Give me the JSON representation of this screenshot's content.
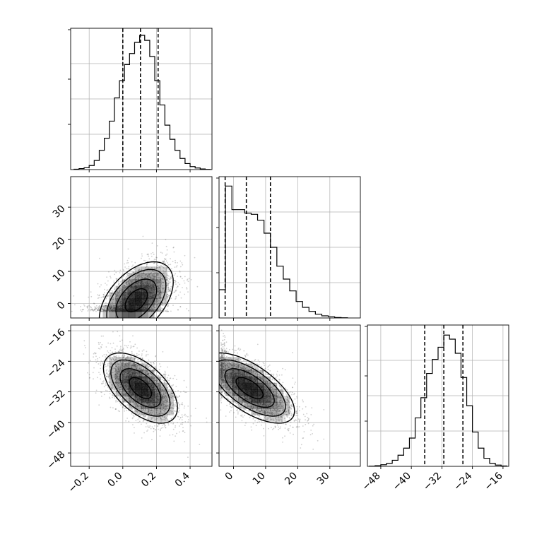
{
  "chart_data": {
    "type": "corner",
    "grid": true,
    "colors": {
      "line": "#000000",
      "grid": "#b0b0b0",
      "density": "#000000",
      "points": "#555555"
    },
    "params": [
      {
        "ticks": [
          -0.2,
          0.0,
          0.2,
          0.4
        ],
        "tick_labels": [
          "−0.2",
          "0.0",
          "0.2",
          "0.4"
        ],
        "range": [
          -0.31,
          0.53
        ]
      },
      {
        "ticks": [
          0,
          10,
          20,
          30
        ],
        "tick_labels": [
          "0",
          "10",
          "20",
          "30"
        ],
        "range": [
          -4.5,
          39.5
        ]
      },
      {
        "ticks": [
          -48,
          -40,
          -32,
          -24,
          -16
        ],
        "tick_labels": [
          "−48",
          "−40",
          "−32",
          "−24",
          "−16"
        ],
        "range": [
          -51.5,
          -14.5
        ]
      }
    ],
    "histograms": [
      {
        "param": 0,
        "edges": [
          -0.29,
          -0.26,
          -0.23,
          -0.2,
          -0.17,
          -0.14,
          -0.11,
          -0.08,
          -0.05,
          -0.02,
          0.01,
          0.04,
          0.07,
          0.1,
          0.13,
          0.16,
          0.19,
          0.22,
          0.25,
          0.28,
          0.31,
          0.34,
          0.37,
          0.4,
          0.43,
          0.46,
          0.49,
          0.52
        ],
        "counts": [
          2,
          5,
          9,
          20,
          45,
          95,
          155,
          240,
          355,
          440,
          520,
          575,
          630,
          665,
          640,
          560,
          440,
          320,
          220,
          150,
          95,
          55,
          30,
          15,
          8,
          3,
          1
        ],
        "quantiles": [
          0.0,
          0.105,
          0.21
        ],
        "ylim": [
          0,
          700
        ]
      },
      {
        "param": 1,
        "edges": [
          -4.5,
          -2.5,
          -0.5,
          1.5,
          3.5,
          5.5,
          7.5,
          9.5,
          11.5,
          13.5,
          15.5,
          17.5,
          19.5,
          21.5,
          23.5,
          25.5,
          27.5,
          29.5,
          31.5,
          33.5,
          35.5
        ],
        "counts": [
          120,
          560,
          460,
          460,
          445,
          440,
          415,
          360,
          300,
          220,
          165,
          115,
          70,
          45,
          28,
          16,
          9,
          5,
          2,
          1
        ],
        "quantiles": [
          -2.6,
          4.0,
          11.5
        ],
        "ylim": [
          0,
          600
        ]
      },
      {
        "param": 2,
        "edges": [
          -51.0,
          -49.5,
          -48.0,
          -46.5,
          -45.0,
          -43.5,
          -42.0,
          -40.5,
          -39.0,
          -37.5,
          -36.0,
          -34.5,
          -33.0,
          -31.5,
          -30.0,
          -28.5,
          -27.0,
          -25.5,
          -24.0,
          -22.5,
          -21.0,
          -19.5,
          -18.0,
          -16.5,
          -15.0
        ],
        "counts": [
          1,
          3,
          8,
          15,
          30,
          55,
          90,
          140,
          240,
          340,
          460,
          530,
          590,
          650,
          630,
          560,
          440,
          300,
          170,
          90,
          40,
          15,
          6,
          2
        ],
        "quantiles": [
          -36.5,
          -31.5,
          -26.5
        ],
        "ylim": [
          0,
          700
        ]
      }
    ],
    "joints": [
      {
        "x_param": 0,
        "y_param": 1,
        "center": [
          0.08,
          1.0
        ],
        "spread": [
          0.11,
          6.0
        ],
        "correlation": 0.48,
        "floor": -2.5
      },
      {
        "x_param": 0,
        "y_param": 2,
        "center": [
          0.105,
          -31.0
        ],
        "spread": [
          0.11,
          4.6
        ],
        "correlation": -0.56
      },
      {
        "x_param": 1,
        "y_param": 2,
        "center": [
          5.0,
          -31.0
        ],
        "spread": [
          7.0,
          4.6
        ],
        "correlation": -0.65,
        "floor_x": -4.0
      }
    ]
  }
}
